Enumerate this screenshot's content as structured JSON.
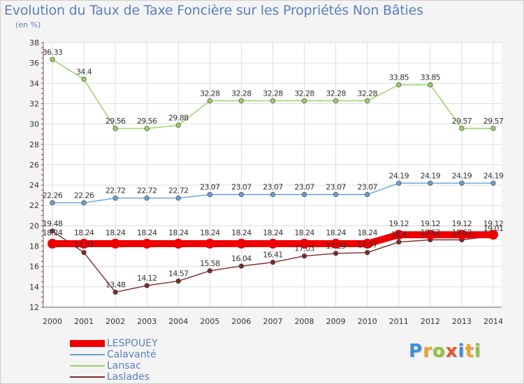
{
  "header": {
    "title": "Evolution du Taux de Taxe Foncière sur les Propriétés Non Bâties",
    "unit": "(en %)"
  },
  "logo": {
    "letters": [
      "P",
      "r",
      "o",
      "x",
      "i",
      "t",
      "i"
    ],
    "colors": [
      "#3d8fd6",
      "#f0a12b",
      "#8fc23f",
      "#e8532b",
      "#3d8fd6",
      "#f0a12b",
      "#8fc23f"
    ]
  },
  "chart_data": {
    "type": "line",
    "title": "Evolution du Taux de Taxe Foncière sur les Propriétés Non Bâties",
    "ylabel": "(en %)",
    "xlabel": "",
    "categories": [
      "2000",
      "2001",
      "2002",
      "2003",
      "2004",
      "2005",
      "2006",
      "2007",
      "2008",
      "2009",
      "2010",
      "2011",
      "2012",
      "2013",
      "2014"
    ],
    "ylim": [
      12,
      38
    ],
    "yticks": [
      "12",
      "14",
      "16",
      "18",
      "20",
      "22",
      "24",
      "26",
      "28",
      "30",
      "32",
      "34",
      "36",
      "38"
    ],
    "grid": true,
    "legend_position": "bottom-left",
    "series": [
      {
        "name": "LESPOUEY",
        "color": "#ee0000",
        "emphasis": true,
        "values": [
          18.24,
          18.24,
          18.24,
          18.24,
          18.24,
          18.24,
          18.24,
          18.24,
          18.24,
          18.24,
          18.24,
          19.12,
          19.12,
          19.12,
          19.12
        ],
        "labels": [
          "18.24",
          "18.24",
          "18.24",
          "18.24",
          "18.24",
          "18.24",
          "18.24",
          "18.24",
          "18.24",
          "18.24",
          "18.24",
          "19.12",
          "19.12",
          "19.12",
          "19.12"
        ]
      },
      {
        "name": "Calavanté",
        "color": "#6a9fd4",
        "emphasis": false,
        "values": [
          22.26,
          22.26,
          22.72,
          22.72,
          22.72,
          23.07,
          23.07,
          23.07,
          23.07,
          23.07,
          23.07,
          24.19,
          24.19,
          24.19,
          24.19
        ],
        "labels": [
          "22.26",
          "22.26",
          "22.72",
          "22.72",
          "22.72",
          "23.07",
          "23.07",
          "23.07",
          "23.07",
          "23.07",
          "23.07",
          "24.19",
          "24.19",
          "24.19",
          "24.19"
        ]
      },
      {
        "name": "Lansac",
        "color": "#99d066",
        "emphasis": false,
        "values": [
          36.33,
          34.4,
          29.56,
          29.56,
          29.88,
          32.28,
          32.28,
          32.28,
          32.28,
          32.28,
          32.28,
          33.85,
          33.85,
          29.57,
          29.57
        ],
        "labels": [
          "36.33",
          "34.4",
          "29.56",
          "29.56",
          "29.88",
          "32.28",
          "32.28",
          "32.28",
          "32.28",
          "32.28",
          "32.28",
          "33.85",
          "33.85",
          "29.57",
          "29.57"
        ]
      },
      {
        "name": "Laslades",
        "color": "#7a2d2d",
        "emphasis": false,
        "values": [
          19.48,
          17.37,
          13.48,
          14.12,
          14.57,
          15.58,
          16.04,
          16.41,
          17.03,
          17.29,
          17.37,
          18.4,
          18.62,
          18.62,
          19.01
        ],
        "labels": [
          "19.48",
          "17.37",
          "13.48",
          "14.12",
          "14.57",
          "15.58",
          "16.04",
          "16.41",
          "17.03",
          "17.29",
          "17.37",
          "18.4",
          "18.62",
          "18.62",
          "19.01"
        ]
      }
    ]
  }
}
